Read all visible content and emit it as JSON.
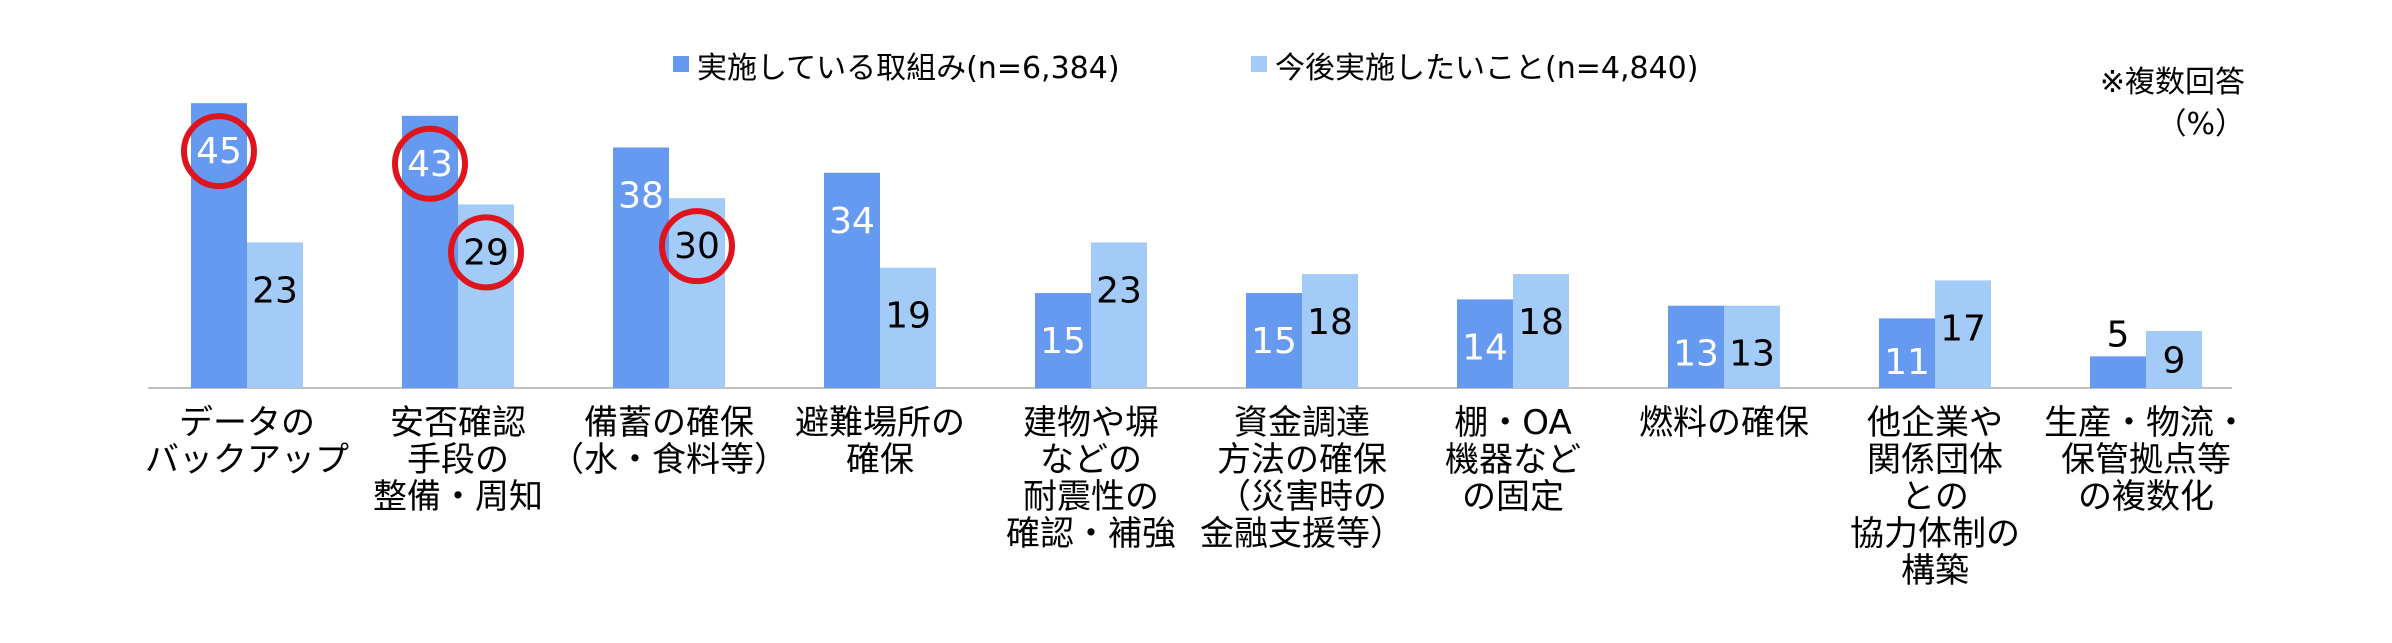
{
  "chart_data": {
    "type": "bar",
    "title": "",
    "xlabel": "",
    "ylabel": "",
    "ylim": [
      0,
      50
    ],
    "grid": false,
    "legend_position": "top-center",
    "note": "※複数回答",
    "unit": "（%）",
    "categories": [
      [
        "データの",
        "バックアップ"
      ],
      [
        "安否確認",
        "手段の",
        "整備・周知"
      ],
      [
        "備蓄の確保",
        "（水・食料等）"
      ],
      [
        "避難場所の",
        "確保"
      ],
      [
        "建物や塀",
        "などの",
        "耐震性の",
        "確認・補強"
      ],
      [
        "資金調達",
        "方法の確保",
        "（災害時の",
        "金融支援等）"
      ],
      [
        "棚・OA",
        "機器など",
        "の固定"
      ],
      [
        "燃料の確保"
      ],
      [
        "他企業や",
        "関係団体",
        "との",
        "協力体制の",
        "構築"
      ],
      [
        "生産・物流・",
        "保管拠点等",
        "の複数化"
      ]
    ],
    "series": [
      {
        "name": "実施している取組み(n=6,384)",
        "color": "#6699f0",
        "values": [
          45,
          43,
          38,
          34,
          15,
          15,
          14,
          13,
          11,
          5
        ]
      },
      {
        "name": "今後実施したいこと(n=4,840)",
        "color": "#a3cbf7",
        "values": [
          23,
          29,
          30,
          19,
          23,
          18,
          18,
          13,
          17,
          9
        ]
      }
    ],
    "highlighted": [
      {
        "series": 0,
        "index": 0
      },
      {
        "series": 0,
        "index": 1
      },
      {
        "series": 1,
        "index": 1
      },
      {
        "series": 1,
        "index": 2
      }
    ],
    "highlight_color": "#e0141c"
  }
}
